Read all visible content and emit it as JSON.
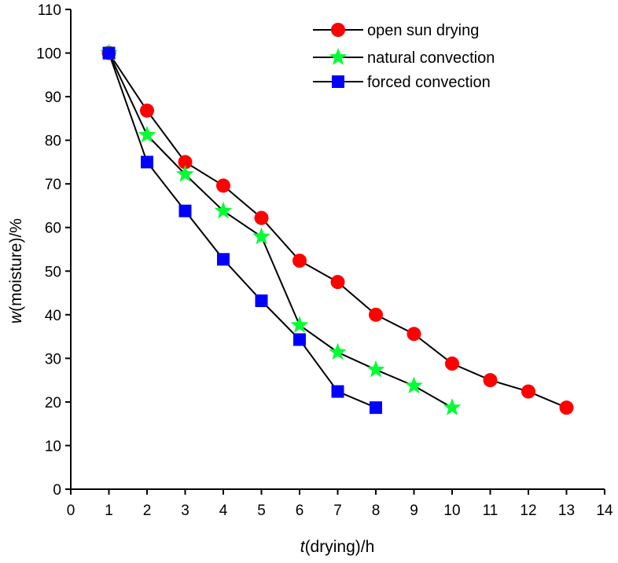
{
  "chart_data": {
    "type": "line",
    "xlabel_var": "t",
    "xlabel_rest": "(drying)/h",
    "ylabel_var": "w",
    "ylabel_rest": "(moisture)/%",
    "xlim": [
      0,
      14
    ],
    "ylim": [
      0,
      110
    ],
    "x_ticks": [
      0,
      1,
      2,
      3,
      4,
      5,
      6,
      7,
      8,
      9,
      10,
      11,
      12,
      13,
      14
    ],
    "y_ticks": [
      0,
      10,
      20,
      30,
      40,
      50,
      60,
      70,
      80,
      90,
      100,
      110
    ],
    "grid": false,
    "legend_position": "top-right",
    "series": [
      {
        "name": "open sun drying",
        "marker": "circle",
        "color": "#ff0000",
        "x": [
          1,
          2,
          3,
          4,
          5,
          6,
          7,
          8,
          9,
          10,
          11,
          12,
          13
        ],
        "y": [
          100,
          86.8,
          75,
          69.6,
          62.2,
          52.4,
          47.5,
          40,
          35.6,
          28.8,
          25,
          22.4,
          18.7
        ]
      },
      {
        "name": "natural convection",
        "marker": "star",
        "color": "#00ff33",
        "x": [
          1,
          2,
          3,
          4,
          5,
          6,
          7,
          8,
          9,
          10
        ],
        "y": [
          100,
          81.2,
          72.2,
          63.8,
          57.9,
          37.6,
          31.4,
          27.4,
          23.7,
          18.7
        ]
      },
      {
        "name": "forced convection",
        "marker": "square",
        "color": "#0000ff",
        "x": [
          1,
          2,
          3,
          4,
          5,
          6,
          7,
          8
        ],
        "y": [
          100,
          75,
          63.8,
          52.7,
          43.2,
          34.3,
          22.4,
          18.7
        ]
      }
    ]
  }
}
